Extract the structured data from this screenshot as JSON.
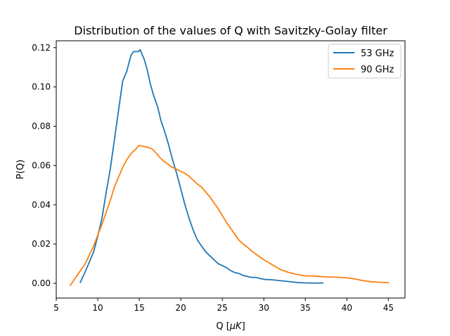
{
  "chart_data": {
    "type": "line",
    "title": "Distribution of the values of Q with Savitzky-Golay filter",
    "xlabel": "Q [",
    "xlabel_unit": "μK",
    "xlabel_end": "]",
    "ylabel": "P(Q)",
    "xlim": [
      5.0,
      47.0
    ],
    "ylim": [
      -0.0075,
      0.1235
    ],
    "xticks": [
      5,
      10,
      15,
      20,
      25,
      30,
      35,
      40,
      45
    ],
    "xtick_labels": [
      "5",
      "10",
      "15",
      "20",
      "25",
      "30",
      "35",
      "40",
      "45"
    ],
    "yticks": [
      0.0,
      0.02,
      0.04,
      0.06,
      0.08,
      0.1,
      0.12
    ],
    "ytick_labels": [
      "0.00",
      "0.02",
      "0.04",
      "0.06",
      "0.08",
      "0.10",
      "0.12"
    ],
    "grid": false,
    "legend_position": "top-right",
    "series": [
      {
        "name": "53 GHz",
        "color": "#1f77b4",
        "x": [
          7.9,
          8.5,
          9.0,
          9.5,
          10.0,
          10.5,
          11.0,
          11.5,
          12.0,
          12.5,
          13.0,
          13.5,
          13.8,
          14.0,
          14.3,
          14.6,
          14.9,
          15.1,
          15.3,
          15.6,
          16.0,
          16.3,
          16.7,
          17.2,
          17.6,
          18.0,
          18.5,
          19.0,
          19.5,
          20.0,
          20.5,
          21.0,
          21.5,
          22.0,
          22.5,
          23.0,
          23.5,
          24.0,
          24.5,
          25.0,
          25.5,
          26.0,
          26.5,
          27.0,
          27.5,
          28.0,
          28.5,
          29.0,
          29.5,
          30.0,
          31.0,
          32.0,
          33.0,
          34.0,
          35.0,
          36.0,
          37.1
        ],
        "y": [
          0.0005,
          0.006,
          0.011,
          0.016,
          0.024,
          0.033,
          0.046,
          0.058,
          0.073,
          0.088,
          0.103,
          0.108,
          0.113,
          0.116,
          0.118,
          0.118,
          0.118,
          0.119,
          0.117,
          0.114,
          0.108,
          0.102,
          0.096,
          0.09,
          0.083,
          0.078,
          0.071,
          0.063,
          0.056,
          0.048,
          0.04,
          0.033,
          0.027,
          0.022,
          0.019,
          0.016,
          0.014,
          0.012,
          0.01,
          0.009,
          0.008,
          0.0065,
          0.0055,
          0.005,
          0.004,
          0.0035,
          0.003,
          0.003,
          0.0025,
          0.002,
          0.0018,
          0.0013,
          0.0009,
          0.0004,
          0.0002,
          0.0001,
          0.0002
        ]
      },
      {
        "name": "90 GHz",
        "color": "#ff7f0e",
        "x": [
          6.7,
          7.5,
          8.5,
          9.5,
          10.5,
          11.5,
          12.0,
          12.5,
          13.0,
          13.5,
          14.0,
          14.5,
          15.0,
          15.5,
          16.0,
          16.5,
          17.0,
          17.5,
          18.0,
          18.5,
          19.0,
          19.5,
          20.0,
          20.5,
          21.0,
          21.5,
          22.0,
          22.5,
          23.0,
          23.5,
          24.0,
          24.5,
          25.0,
          25.5,
          26.0,
          26.5,
          27.0,
          27.5,
          28.0,
          28.5,
          29.0,
          29.5,
          30.0,
          31.0,
          32.0,
          33.0,
          34.0,
          35.0,
          36.0,
          37.0,
          38.0,
          39.0,
          40.0,
          41.0,
          42.0,
          43.0,
          44.0,
          45.0
        ],
        "y": [
          -0.001,
          0.004,
          0.01,
          0.019,
          0.03,
          0.042,
          0.049,
          0.054,
          0.059,
          0.063,
          0.066,
          0.068,
          0.0702,
          0.0697,
          0.0693,
          0.0685,
          0.0665,
          0.064,
          0.062,
          0.0605,
          0.059,
          0.058,
          0.057,
          0.056,
          0.0545,
          0.0525,
          0.0505,
          0.049,
          0.0465,
          0.044,
          0.041,
          0.038,
          0.0345,
          0.031,
          0.028,
          0.025,
          0.022,
          0.02,
          0.0185,
          0.0165,
          0.015,
          0.0135,
          0.012,
          0.0095,
          0.007,
          0.0055,
          0.0045,
          0.0038,
          0.0037,
          0.0034,
          0.0032,
          0.0031,
          0.0028,
          0.0022,
          0.0013,
          0.0008,
          0.0005,
          0.0003
        ]
      }
    ]
  }
}
